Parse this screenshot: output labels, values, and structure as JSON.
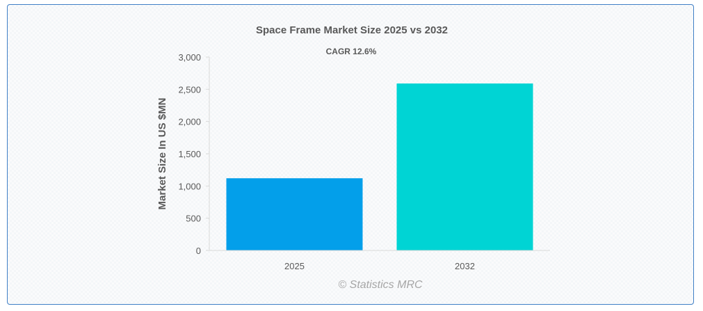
{
  "chart_data": {
    "type": "bar",
    "title": "Space Frame Market Size 2025 vs 2032",
    "subtitle": "CAGR 12.6%",
    "categories": [
      "2025",
      "2032"
    ],
    "values": [
      1120,
      2590
    ],
    "bar_colors": [
      "#039fea",
      "#00d4d4"
    ],
    "xlabel": "",
    "ylabel": "Market Size In US $MN",
    "ylim": [
      0,
      3000
    ],
    "yticks": [
      0,
      500,
      1000,
      1500,
      2000,
      2500,
      3000
    ],
    "ytick_labels": [
      "0",
      "500",
      "1,000",
      "1,500",
      "2,000",
      "2,500",
      "3,000"
    ],
    "grid": false,
    "legend": "none"
  },
  "watermark": "© Statistics MRC"
}
